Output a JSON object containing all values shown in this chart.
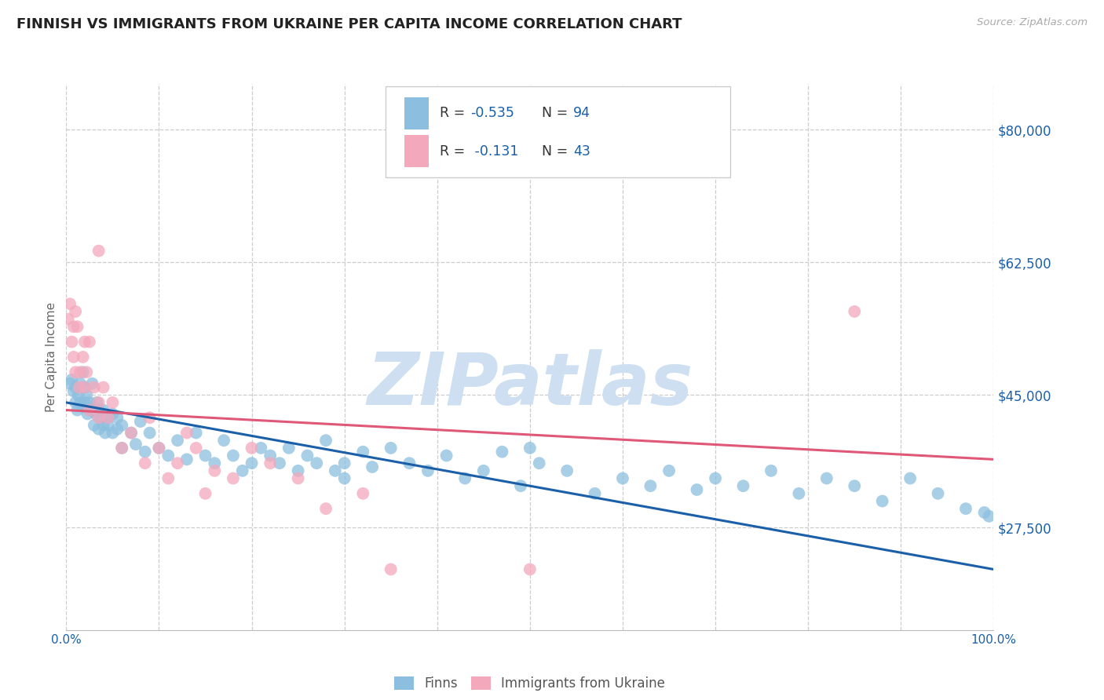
{
  "title": "FINNISH VS IMMIGRANTS FROM UKRAINE PER CAPITA INCOME CORRELATION CHART",
  "source": "Source: ZipAtlas.com",
  "ylabel": "Per Capita Income",
  "xlim": [
    0.0,
    100.0
  ],
  "ylim": [
    14000,
    86000
  ],
  "yticks": [
    27500,
    45000,
    62500,
    80000
  ],
  "ytick_labels": [
    "$27,500",
    "$45,000",
    "$62,500",
    "$80,000"
  ],
  "xticks": [
    0,
    10,
    20,
    30,
    40,
    50,
    60,
    70,
    80,
    90,
    100
  ],
  "xtick_labels_show": [
    "0.0%",
    "",
    "",
    "",
    "",
    "",
    "",
    "",
    "",
    "",
    "100.0%"
  ],
  "legend_finn_r": "-0.535",
  "legend_finn_n": "94",
  "legend_ukr_r": "-0.131",
  "legend_ukr_n": "43",
  "color_finns": "#8cbfdf",
  "color_ukraine": "#f4a8bc",
  "color_line_finns": "#1a5fa8",
  "color_line_ukraine": "#e05878",
  "color_tick_labels": "#1a5fa8",
  "color_title": "#222222",
  "watermark_color": "#cddff0",
  "background_color": "#ffffff",
  "grid_color": "#cccccc",
  "finns_x": [
    0.4,
    0.6,
    0.8,
    1.0,
    1.0,
    1.2,
    1.3,
    1.5,
    1.5,
    1.7,
    1.8,
    2.0,
    2.0,
    2.0,
    2.2,
    2.3,
    2.5,
    2.5,
    2.8,
    3.0,
    3.0,
    3.2,
    3.3,
    3.5,
    3.5,
    3.7,
    4.0,
    4.0,
    4.2,
    4.5,
    4.5,
    5.0,
    5.0,
    5.5,
    5.5,
    6.0,
    6.0,
    7.0,
    7.5,
    8.0,
    8.5,
    9.0,
    10.0,
    11.0,
    12.0,
    13.0,
    14.0,
    15.0,
    16.0,
    17.0,
    18.0,
    19.0,
    20.0,
    21.0,
    22.0,
    23.0,
    24.0,
    25.0,
    26.0,
    27.0,
    28.0,
    29.0,
    30.0,
    32.0,
    33.0,
    35.0,
    37.0,
    39.0,
    41.0,
    43.0,
    45.0,
    47.0,
    49.0,
    51.0,
    54.0,
    57.0,
    60.0,
    63.0,
    65.0,
    68.0,
    70.0,
    73.0,
    76.0,
    79.0,
    82.0,
    85.0,
    88.0,
    91.0,
    94.0,
    97.0,
    99.0,
    99.5,
    50.0,
    30.0
  ],
  "finns_y": [
    46500,
    47000,
    45500,
    44000,
    46000,
    43000,
    45000,
    44000,
    46500,
    43500,
    48000,
    44000,
    46000,
    43500,
    45000,
    42500,
    44000,
    43000,
    46500,
    43000,
    41000,
    42500,
    44000,
    40500,
    43000,
    42000,
    41000,
    43000,
    40000,
    42000,
    41000,
    40000,
    42500,
    40500,
    42000,
    41000,
    38000,
    40000,
    38500,
    41500,
    37500,
    40000,
    38000,
    37000,
    39000,
    36500,
    40000,
    37000,
    36000,
    39000,
    37000,
    35000,
    36000,
    38000,
    37000,
    36000,
    38000,
    35000,
    37000,
    36000,
    39000,
    35000,
    34000,
    37500,
    35500,
    38000,
    36000,
    35000,
    37000,
    34000,
    35000,
    37500,
    33000,
    36000,
    35000,
    32000,
    34000,
    33000,
    35000,
    32500,
    34000,
    33000,
    35000,
    32000,
    34000,
    33000,
    31000,
    34000,
    32000,
    30000,
    29500,
    29000,
    38000,
    36000
  ],
  "ukraine_x": [
    0.2,
    0.4,
    0.6,
    0.8,
    0.8,
    1.0,
    1.0,
    1.2,
    1.4,
    1.5,
    1.8,
    2.0,
    2.0,
    2.2,
    2.5,
    2.5,
    3.0,
    3.5,
    3.5,
    4.0,
    4.5,
    5.0,
    6.0,
    7.0,
    8.5,
    9.0,
    10.0,
    11.0,
    12.0,
    13.0,
    14.0,
    15.0,
    16.0,
    18.0,
    20.0,
    22.0,
    25.0,
    28.0,
    32.0,
    35.0,
    50.0,
    85.0,
    3.5
  ],
  "ukraine_y": [
    55000,
    57000,
    52000,
    54000,
    50000,
    56000,
    48000,
    54000,
    46000,
    48000,
    50000,
    46000,
    52000,
    48000,
    43000,
    52000,
    46000,
    44000,
    42000,
    46000,
    42000,
    44000,
    38000,
    40000,
    36000,
    42000,
    38000,
    34000,
    36000,
    40000,
    38000,
    32000,
    35000,
    34000,
    38000,
    36000,
    34000,
    30000,
    32000,
    22000,
    22000,
    56000,
    64000
  ],
  "finns_line_x0": 0,
  "finns_line_x1": 100,
  "finns_line_y0": 44000,
  "finns_line_y1": 22000,
  "ukraine_line_x0": 0,
  "ukraine_line_x1": 100,
  "ukraine_line_y0": 43000,
  "ukraine_line_y1": 36500
}
